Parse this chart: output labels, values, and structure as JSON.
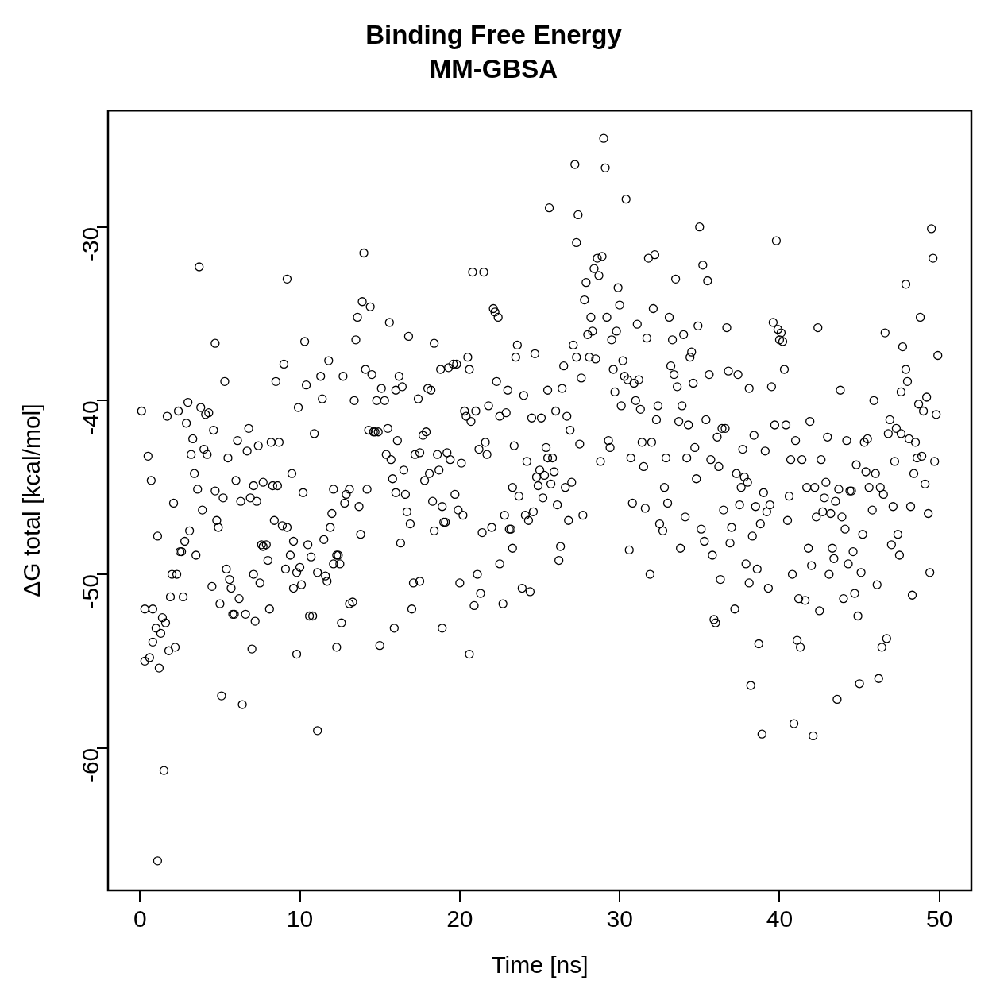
{
  "chart_data": {
    "type": "scatter",
    "title": "Binding Free Energy",
    "subtitle": "MM-GBSA",
    "xlabel": "Time [ns]",
    "ylabel": "ΔG total [kcal/mol]",
    "xlim": [
      -2,
      52
    ],
    "xticks": [
      0,
      10,
      20,
      30,
      40,
      50
    ],
    "ylim": [
      -68.2,
      -23.3
    ],
    "yticks": [
      -60,
      -50,
      -40,
      -30
    ],
    "grid": false,
    "legend": false,
    "marker": "circle",
    "series": [
      {
        "color": "#000000",
        "x": [
          0.1,
          0.3,
          0.3,
          0.5,
          0.6,
          0.7,
          0.8,
          0.8,
          1.0,
          1.1,
          1.1,
          1.2,
          1.3,
          1.4,
          1.5,
          1.6,
          1.7,
          1.8,
          1.9,
          2.0,
          2.1,
          2.2,
          2.3,
          2.4,
          2.5,
          2.6,
          2.7,
          2.8,
          2.9,
          3.0,
          3.1,
          3.2,
          3.3,
          3.4,
          3.5,
          3.6,
          3.7,
          3.8,
          3.9,
          4.0,
          4.1,
          4.2,
          4.3,
          4.5,
          4.6,
          4.7,
          4.7,
          4.8,
          4.9,
          5.0,
          5.1,
          5.2,
          5.3,
          5.4,
          5.5,
          5.6,
          5.7,
          5.8,
          5.9,
          6.0,
          6.1,
          6.2,
          6.3,
          6.4,
          6.6,
          6.7,
          6.8,
          6.9,
          7.0,
          7.1,
          7.1,
          7.2,
          7.3,
          7.4,
          7.5,
          7.6,
          7.7,
          7.7,
          7.9,
          8.0,
          8.1,
          8.2,
          8.3,
          8.4,
          8.5,
          8.6,
          8.7,
          8.9,
          9.0,
          9.1,
          9.2,
          9.2,
          9.4,
          9.5,
          9.6,
          9.6,
          9.8,
          9.8,
          9.9,
          10.0,
          10.1,
          10.2,
          10.3,
          10.4,
          10.5,
          10.6,
          10.7,
          10.8,
          10.9,
          11.1,
          11.1,
          11.3,
          11.4,
          11.5,
          11.6,
          11.7,
          11.8,
          11.9,
          12.0,
          12.1,
          12.1,
          12.3,
          12.3,
          12.4,
          12.5,
          12.6,
          12.7,
          12.8,
          12.9,
          13.1,
          13.1,
          13.3,
          13.4,
          13.5,
          13.6,
          13.7,
          13.8,
          13.9,
          14.0,
          14.1,
          14.2,
          14.3,
          14.4,
          14.5,
          14.6,
          14.7,
          14.8,
          14.9,
          15.0,
          15.1,
          15.3,
          15.4,
          15.5,
          15.6,
          15.7,
          15.8,
          15.9,
          16.0,
          16.0,
          16.1,
          16.2,
          16.3,
          16.4,
          16.5,
          16.6,
          16.7,
          16.8,
          16.9,
          17.0,
          17.1,
          17.2,
          17.4,
          17.5,
          17.5,
          17.7,
          17.8,
          17.9,
          18.0,
          18.1,
          18.2,
          18.3,
          18.4,
          18.4,
          18.6,
          18.7,
          18.8,
          18.9,
          18.9,
          19.0,
          19.1,
          19.2,
          19.3,
          19.4,
          19.6,
          19.7,
          19.8,
          19.9,
          20.0,
          20.1,
          20.2,
          20.3,
          20.4,
          20.5,
          20.6,
          20.6,
          20.7,
          20.8,
          20.9,
          21.0,
          21.1,
          21.2,
          21.3,
          21.4,
          21.5,
          21.6,
          21.7,
          21.8,
          22.0,
          22.1,
          22.2,
          22.3,
          22.4,
          22.5,
          22.5,
          22.7,
          22.8,
          22.9,
          23.0,
          23.1,
          23.2,
          23.3,
          23.3,
          23.4,
          23.5,
          23.6,
          23.7,
          23.9,
          24.0,
          24.1,
          24.2,
          24.3,
          24.4,
          24.5,
          24.6,
          24.7,
          24.8,
          24.9,
          25.0,
          25.1,
          25.2,
          25.3,
          25.4,
          25.5,
          25.5,
          25.6,
          25.7,
          25.8,
          25.9,
          26.0,
          26.1,
          26.2,
          26.3,
          26.4,
          26.5,
          26.6,
          26.7,
          26.8,
          26.9,
          27.0,
          27.1,
          27.2,
          27.3,
          27.3,
          27.4,
          27.5,
          27.6,
          27.7,
          27.8,
          27.9,
          28.0,
          28.1,
          28.2,
          28.3,
          28.4,
          28.5,
          28.6,
          28.7,
          28.8,
          28.9,
          29.0,
          29.1,
          29.2,
          29.3,
          29.4,
          29.5,
          29.6,
          29.7,
          29.8,
          29.9,
          30.0,
          30.1,
          30.2,
          30.3,
          30.4,
          30.5,
          30.6,
          30.7,
          30.8,
          30.9,
          31.0,
          31.1,
          31.2,
          31.3,
          31.4,
          31.5,
          31.6,
          31.7,
          31.8,
          31.9,
          32.0,
          32.1,
          32.2,
          32.3,
          32.4,
          32.5,
          32.7,
          32.8,
          32.9,
          33.0,
          33.1,
          33.2,
          33.3,
          33.4,
          33.5,
          33.6,
          33.7,
          33.8,
          33.9,
          34.0,
          34.1,
          34.2,
          34.3,
          34.4,
          34.5,
          34.6,
          34.7,
          34.8,
          34.9,
          35.0,
          35.1,
          35.2,
          35.3,
          35.4,
          35.5,
          35.6,
          35.7,
          35.8,
          35.9,
          36.0,
          36.1,
          36.2,
          36.3,
          36.4,
          36.5,
          36.6,
          36.7,
          36.8,
          36.9,
          37.0,
          37.2,
          37.3,
          37.4,
          37.5,
          37.6,
          37.7,
          37.8,
          37.9,
          38.0,
          38.1,
          38.1,
          38.2,
          38.3,
          38.4,
          38.5,
          38.6,
          38.7,
          38.8,
          38.9,
          39.0,
          39.1,
          39.2,
          39.3,
          39.4,
          39.5,
          39.6,
          39.7,
          39.8,
          39.9,
          40.0,
          40.1,
          40.2,
          40.3,
          40.4,
          40.5,
          40.6,
          40.7,
          40.8,
          40.9,
          41.0,
          41.1,
          41.2,
          41.3,
          41.4,
          41.6,
          41.7,
          41.8,
          41.9,
          42.0,
          42.1,
          42.2,
          42.3,
          42.4,
          42.5,
          42.6,
          42.7,
          42.8,
          42.9,
          43.0,
          43.1,
          43.2,
          43.3,
          43.4,
          43.5,
          43.6,
          43.7,
          43.8,
          43.9,
          44.0,
          44.1,
          44.2,
          44.3,
          44.4,
          44.5,
          44.6,
          44.7,
          44.8,
          44.9,
          45.0,
          45.1,
          45.2,
          45.3,
          45.4,
          45.5,
          45.6,
          45.8,
          45.9,
          46.0,
          46.1,
          46.2,
          46.3,
          46.4,
          46.5,
          46.6,
          46.7,
          46.8,
          46.9,
          47.0,
          47.1,
          47.2,
          47.3,
          47.4,
          47.5,
          47.6,
          47.6,
          47.7,
          47.9,
          47.9,
          48.0,
          48.1,
          48.2,
          48.3,
          48.4,
          48.5,
          48.6,
          48.7,
          48.8,
          48.9,
          49.0,
          49.1,
          49.2,
          49.3,
          49.4,
          49.5,
          49.6,
          49.7,
          49.8,
          49.9
        ],
        "values": [
          -40.6,
          -55.0,
          -52.0,
          -43.2,
          -54.8,
          -44.6,
          -53.9,
          -52.0,
          -53.1,
          -47.8,
          -66.5,
          -55.4,
          -53.4,
          -52.5,
          -61.3,
          -52.8,
          -40.9,
          -54.4,
          -51.3,
          -50.0,
          -45.9,
          -54.2,
          -50.0,
          -40.6,
          -48.7,
          -48.7,
          -51.3,
          -48.1,
          -41.3,
          -40.1,
          -47.5,
          -43.1,
          -42.2,
          -44.2,
          -48.9,
          -45.1,
          -32.3,
          -40.4,
          -46.3,
          -42.8,
          -40.8,
          -43.1,
          -40.7,
          -50.7,
          -41.7,
          -45.2,
          -36.7,
          -46.9,
          -47.3,
          -51.7,
          -57.0,
          -45.6,
          -38.9,
          -49.7,
          -43.3,
          -50.3,
          -50.8,
          -52.3,
          -52.3,
          -44.6,
          -42.3,
          -51.4,
          -45.8,
          -57.5,
          -52.3,
          -42.9,
          -41.6,
          -45.6,
          -54.3,
          -44.9,
          -50.0,
          -52.7,
          -45.8,
          -42.6,
          -50.5,
          -48.3,
          -44.7,
          -48.4,
          -48.3,
          -49.2,
          -52.0,
          -42.4,
          -44.9,
          -46.9,
          -38.9,
          -44.9,
          -42.4,
          -47.2,
          -37.9,
          -49.7,
          -47.3,
          -33.0,
          -48.9,
          -44.2,
          -48.1,
          -50.8,
          -49.9,
          -54.6,
          -40.4,
          -49.6,
          -50.6,
          -45.3,
          -36.6,
          -39.1,
          -48.3,
          -52.4,
          -49.0,
          -52.4,
          -41.9,
          -49.9,
          -59.0,
          -38.6,
          -39.9,
          -48.0,
          -50.1,
          -50.4,
          -37.7,
          -47.3,
          -46.5,
          -49.4,
          -45.1,
          -48.9,
          -54.2,
          -48.9,
          -49.4,
          -52.8,
          -38.6,
          -45.9,
          -45.4,
          -45.1,
          -51.7,
          -51.6,
          -40.0,
          -36.5,
          -35.2,
          -46.1,
          -47.7,
          -34.3,
          -31.5,
          -38.2,
          -45.1,
          -41.7,
          -34.6,
          -38.5,
          -41.8,
          -41.8,
          -40.0,
          -41.8,
          -54.1,
          -39.3,
          -40.0,
          -43.1,
          -41.6,
          -35.5,
          -43.4,
          -44.5,
          -53.1,
          -39.4,
          -45.3,
          -42.3,
          -38.6,
          -48.2,
          -39.2,
          -44.0,
          -45.4,
          -46.4,
          -36.3,
          -47.1,
          -52.0,
          -50.5,
          -43.1,
          -39.9,
          -50.4,
          -43.0,
          -42.0,
          -44.6,
          -41.8,
          -39.3,
          -44.2,
          -39.4,
          -45.8,
          -47.5,
          -36.7,
          -43.1,
          -44.0,
          -38.2,
          -46.1,
          -53.1,
          -47.0,
          -47.0,
          -43.0,
          -38.1,
          -43.4,
          -37.9,
          -45.4,
          -37.9,
          -46.3,
          -50.5,
          -43.6,
          -46.6,
          -40.6,
          -40.9,
          -37.5,
          -38.2,
          -54.6,
          -41.2,
          -32.6,
          -51.8,
          -40.6,
          -50.0,
          -42.8,
          -51.1,
          -47.6,
          -32.6,
          -42.4,
          -43.1,
          -40.3,
          -47.3,
          -34.7,
          -34.9,
          -38.9,
          -35.2,
          -40.9,
          -49.4,
          -51.7,
          -46.6,
          -40.7,
          -39.4,
          -47.4,
          -47.4,
          -48.5,
          -45.0,
          -42.6,
          -37.5,
          -36.8,
          -45.5,
          -50.8,
          -39.7,
          -46.6,
          -43.5,
          -46.9,
          -51.0,
          -41.0,
          -46.4,
          -37.3,
          -44.4,
          -44.9,
          -44.0,
          -41.0,
          -45.6,
          -44.3,
          -42.7,
          -39.4,
          -43.3,
          -28.9,
          -44.8,
          -43.3,
          -44.1,
          -40.6,
          -46.0,
          -49.2,
          -48.4,
          -39.3,
          -38.0,
          -45.0,
          -40.9,
          -46.9,
          -41.7,
          -44.7,
          -36.8,
          -26.4,
          -37.5,
          -30.9,
          -29.3,
          -42.5,
          -38.7,
          -46.6,
          -34.2,
          -33.2,
          -36.2,
          -37.5,
          -35.2,
          -36.0,
          -32.4,
          -37.6,
          -31.8,
          -32.8,
          -43.5,
          -31.7,
          -24.9,
          -26.6,
          -35.2,
          -42.3,
          -42.7,
          -36.5,
          -38.2,
          -39.5,
          -36.0,
          -33.5,
          -34.5,
          -40.3,
          -37.7,
          -38.6,
          -28.4,
          -38.8,
          -48.6,
          -43.3,
          -45.9,
          -39.0,
          -40.0,
          -35.6,
          -38.8,
          -40.5,
          -42.4,
          -43.8,
          -46.2,
          -36.4,
          -31.8,
          -50.0,
          -42.4,
          -34.7,
          -31.6,
          -41.1,
          -40.3,
          -47.1,
          -47.5,
          -45.0,
          -43.3,
          -45.9,
          -35.2,
          -38.0,
          -36.5,
          -38.5,
          -33.0,
          -39.2,
          -41.2,
          -48.5,
          -40.3,
          -36.2,
          -46.7,
          -43.3,
          -41.4,
          -37.5,
          -37.2,
          -39.0,
          -42.7,
          -44.5,
          -35.7,
          -30.0,
          -47.4,
          -32.2,
          -48.1,
          -41.1,
          -33.1,
          -38.5,
          -43.4,
          -48.9,
          -52.6,
          -52.8,
          -42.1,
          -43.8,
          -50.3,
          -41.6,
          -46.3,
          -41.6,
          -35.8,
          -38.3,
          -48.2,
          -47.3,
          -52.0,
          -44.2,
          -38.5,
          -46.0,
          -45.0,
          -42.8,
          -44.4,
          -49.4,
          -44.7,
          -50.5,
          -39.3,
          -56.4,
          -47.8,
          -42.0,
          -46.1,
          -49.7,
          -54.0,
          -47.1,
          -59.2,
          -45.3,
          -42.9,
          -46.4,
          -50.8,
          -46.0,
          -39.2,
          -35.5,
          -41.4,
          -30.8,
          -35.9,
          -36.5,
          -36.1,
          -36.6,
          -38.2,
          -41.4,
          -46.9,
          -45.5,
          -43.4,
          -50.0,
          -58.6,
          -42.3,
          -53.8,
          -51.4,
          -54.2,
          -43.4,
          -51.5,
          -45.0,
          -48.5,
          -41.2,
          -49.5,
          -59.3,
          -45.0,
          -46.7,
          -35.8,
          -52.1,
          -43.4,
          -46.4,
          -45.6,
          -44.7,
          -42.1,
          -50.0,
          -46.5,
          -48.5,
          -49.1,
          -45.8,
          -57.2,
          -45.1,
          -39.4,
          -46.7,
          -51.4,
          -47.4,
          -42.3,
          -49.4,
          -45.2,
          -45.2,
          -48.7,
          -51.1,
          -43.7,
          -52.4,
          -56.3,
          -49.9,
          -47.7,
          -42.4,
          -44.1,
          -42.2,
          -45.0,
          -46.3,
          -40.0,
          -44.2,
          -50.6,
          -56.0,
          -45.0,
          -54.2,
          -45.4,
          -36.1,
          -53.7,
          -41.9,
          -41.1,
          -48.3,
          -46.1,
          -43.5,
          -41.6,
          -47.7,
          -48.9,
          -39.5,
          -41.9,
          -36.9,
          -38.2,
          -33.3,
          -38.9,
          -42.2,
          -46.1,
          -51.2,
          -44.2,
          -42.4,
          -43.3,
          -40.2,
          -35.2,
          -43.2,
          -40.6,
          -44.8,
          -39.8,
          -46.5,
          -49.9,
          -30.1,
          -31.8,
          -43.5,
          -40.8,
          -37.4
        ]
      }
    ]
  }
}
